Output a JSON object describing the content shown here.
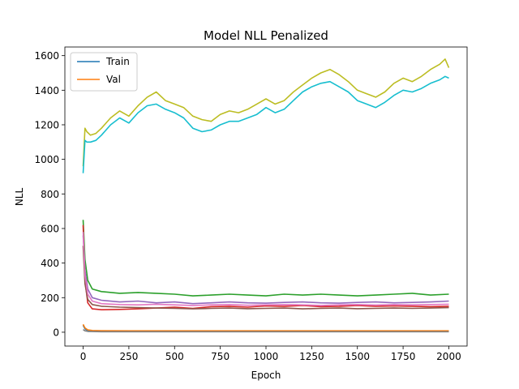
{
  "chart_data": {
    "type": "line",
    "title": "Model NLL Penalized",
    "xlabel": "Epoch",
    "ylabel": "NLL",
    "xlim": [
      -100,
      2100
    ],
    "ylim": [
      -80,
      1650
    ],
    "xticks": [
      0,
      250,
      500,
      750,
      1000,
      1250,
      1500,
      1750,
      2000
    ],
    "yticks": [
      0,
      200,
      400,
      600,
      800,
      1000,
      1200,
      1400,
      1600
    ],
    "legend_position": "upper-left",
    "legend": [
      {
        "label": "Train",
        "color": "#1f77b4"
      },
      {
        "label": "Val",
        "color": "#ff7f0e"
      }
    ],
    "series": [
      {
        "name": "series-1",
        "color": "#1f77b4",
        "x": [
          0,
          10,
          25,
          50,
          100,
          250,
          500,
          1000,
          1500,
          2000
        ],
        "y": [
          40,
          20,
          10,
          6,
          5,
          4,
          4,
          4,
          4,
          4
        ]
      },
      {
        "name": "series-2",
        "color": "#ff7f0e",
        "x": [
          0,
          10,
          25,
          50,
          100,
          250,
          500,
          1000,
          1500,
          2000
        ],
        "y": [
          45,
          25,
          14,
          10,
          9,
          8,
          8,
          8,
          8,
          8
        ]
      },
      {
        "name": "series-3",
        "color": "#2ca02c",
        "x": [
          0,
          10,
          25,
          50,
          100,
          200,
          300,
          400,
          500,
          600,
          700,
          800,
          900,
          1000,
          1100,
          1200,
          1300,
          1400,
          1500,
          1600,
          1700,
          1800,
          1900,
          2000
        ],
        "y": [
          650,
          420,
          300,
          250,
          235,
          225,
          230,
          225,
          220,
          210,
          215,
          220,
          215,
          210,
          220,
          215,
          220,
          215,
          210,
          215,
          220,
          225,
          215,
          220
        ]
      },
      {
        "name": "series-4",
        "color": "#d62728",
        "x": [
          0,
          10,
          25,
          50,
          100,
          200,
          300,
          400,
          500,
          600,
          700,
          800,
          900,
          1000,
          1100,
          1200,
          1300,
          1400,
          1500,
          1600,
          1700,
          1800,
          1900,
          2000
        ],
        "y": [
          620,
          300,
          170,
          135,
          130,
          132,
          135,
          140,
          145,
          138,
          148,
          150,
          145,
          152,
          150,
          155,
          148,
          150,
          155,
          150,
          152,
          150,
          148,
          150
        ]
      },
      {
        "name": "series-5",
        "color": "#9467bd",
        "x": [
          0,
          10,
          25,
          50,
          100,
          200,
          300,
          400,
          500,
          600,
          700,
          800,
          900,
          1000,
          1100,
          1200,
          1300,
          1400,
          1500,
          1600,
          1700,
          1800,
          1900,
          2000
        ],
        "y": [
          560,
          360,
          250,
          200,
          185,
          175,
          180,
          170,
          175,
          165,
          170,
          175,
          170,
          168,
          172,
          175,
          170,
          168,
          172,
          175,
          170,
          172,
          175,
          180
        ]
      },
      {
        "name": "series-6",
        "color": "#8c564b",
        "x": [
          0,
          10,
          25,
          50,
          100,
          200,
          300,
          400,
          500,
          600,
          700,
          800,
          900,
          1000,
          1100,
          1200,
          1300,
          1400,
          1500,
          1600,
          1700,
          1800,
          1900,
          2000
        ],
        "y": [
          500,
          280,
          190,
          160,
          150,
          145,
          142,
          140,
          138,
          135,
          138,
          140,
          136,
          138,
          140,
          135,
          138,
          140,
          136,
          138,
          140,
          138,
          140,
          142
        ]
      },
      {
        "name": "series-7",
        "color": "#e377c2",
        "x": [
          0,
          10,
          25,
          50,
          100,
          200,
          300,
          400,
          500,
          600,
          700,
          800,
          900,
          1000,
          1100,
          1200,
          1300,
          1400,
          1500,
          1600,
          1700,
          1800,
          1900,
          2000
        ],
        "y": [
          580,
          330,
          220,
          180,
          165,
          160,
          158,
          162,
          158,
          155,
          158,
          160,
          156,
          158,
          160,
          158,
          155,
          158,
          160,
          157,
          160,
          158,
          160,
          162
        ]
      },
      {
        "name": "series-8",
        "color": "#7f7f7f",
        "x": [
          0,
          10,
          25,
          50,
          100,
          250,
          500,
          1000,
          1500,
          2000
        ],
        "y": [
          15,
          8,
          5,
          4,
          3,
          3,
          3,
          3,
          3,
          3
        ]
      },
      {
        "name": "series-9",
        "color": "#bcbd22",
        "x": [
          0,
          10,
          20,
          40,
          70,
          100,
          150,
          200,
          250,
          300,
          350,
          400,
          450,
          500,
          550,
          600,
          650,
          700,
          750,
          800,
          850,
          900,
          950,
          1000,
          1050,
          1100,
          1150,
          1200,
          1250,
          1300,
          1350,
          1400,
          1450,
          1500,
          1550,
          1600,
          1650,
          1700,
          1750,
          1800,
          1850,
          1900,
          1950,
          1980,
          2000
        ],
        "y": [
          960,
          1180,
          1160,
          1140,
          1150,
          1180,
          1240,
          1280,
          1250,
          1310,
          1360,
          1390,
          1340,
          1320,
          1300,
          1250,
          1230,
          1220,
          1260,
          1280,
          1270,
          1290,
          1320,
          1350,
          1320,
          1340,
          1390,
          1430,
          1470,
          1500,
          1520,
          1490,
          1450,
          1400,
          1380,
          1360,
          1390,
          1440,
          1470,
          1450,
          1480,
          1520,
          1550,
          1580,
          1530
        ]
      },
      {
        "name": "series-10",
        "color": "#17becf",
        "x": [
          0,
          10,
          20,
          40,
          70,
          100,
          150,
          200,
          250,
          300,
          350,
          400,
          450,
          500,
          550,
          600,
          650,
          700,
          750,
          800,
          850,
          900,
          950,
          1000,
          1050,
          1100,
          1150,
          1200,
          1250,
          1300,
          1350,
          1400,
          1450,
          1500,
          1550,
          1600,
          1650,
          1700,
          1750,
          1800,
          1850,
          1900,
          1950,
          1980,
          2000
        ],
        "y": [
          920,
          1110,
          1100,
          1100,
          1110,
          1140,
          1200,
          1240,
          1210,
          1270,
          1310,
          1320,
          1290,
          1270,
          1240,
          1180,
          1160,
          1170,
          1200,
          1220,
          1220,
          1240,
          1260,
          1300,
          1270,
          1290,
          1340,
          1390,
          1420,
          1440,
          1450,
          1420,
          1390,
          1340,
          1320,
          1300,
          1330,
          1370,
          1400,
          1390,
          1410,
          1440,
          1460,
          1480,
          1470
        ]
      }
    ]
  }
}
